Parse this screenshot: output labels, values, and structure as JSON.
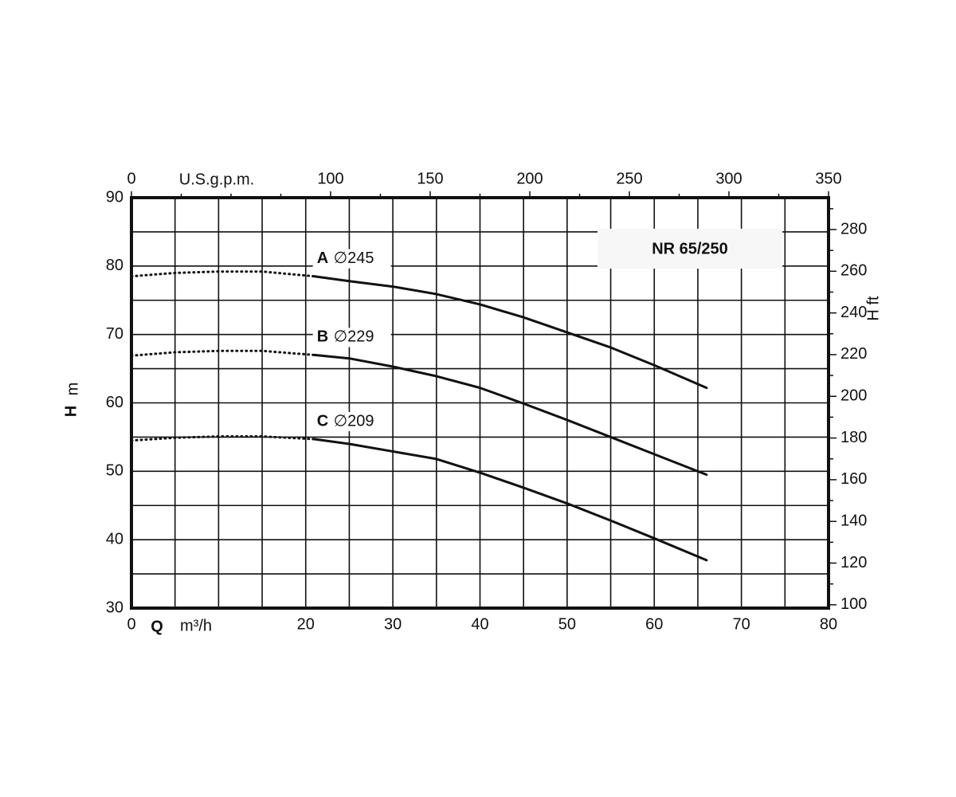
{
  "chart_data": {
    "type": "line",
    "title": "NR 65/250",
    "xlabel": "Q",
    "xunit": "m³/h",
    "x2label": "U.S.g.p.m.",
    "ylabel": "H",
    "yunit": "m",
    "y2label": "H ft",
    "xlim": [
      0,
      80
    ],
    "xticks": [
      0,
      20,
      30,
      40,
      50,
      60,
      70,
      80
    ],
    "xgrid": [
      0,
      5,
      10,
      15,
      20,
      25,
      30,
      35,
      40,
      45,
      50,
      55,
      60,
      65,
      70,
      75,
      80
    ],
    "ylim": [
      30,
      90
    ],
    "yticks": [
      30,
      40,
      50,
      60,
      70,
      80,
      90
    ],
    "ygrid": [
      30,
      35,
      40,
      45,
      50,
      55,
      60,
      65,
      70,
      75,
      80,
      85,
      90
    ],
    "x2lim": [
      0,
      350
    ],
    "x2ticks": [
      0,
      100,
      150,
      200,
      250,
      300,
      350
    ],
    "x2minorticks": [
      25,
      50,
      75,
      125,
      175,
      225,
      275,
      325
    ],
    "y2lim": [
      98.4,
      295.3
    ],
    "y2ticks": [
      100,
      120,
      140,
      160,
      180,
      200,
      220,
      240,
      260,
      280
    ],
    "y2minorticks": [
      110,
      130,
      150,
      170,
      190,
      210,
      230,
      250,
      270,
      290
    ],
    "grid": true,
    "color": "#111111",
    "series": [
      {
        "name": "A",
        "diameter": "∅245",
        "segments": [
          {
            "style": "dotted",
            "x": [
              0,
              5,
              10,
              15,
              21
            ],
            "values": [
              78.5,
              79.0,
              79.2,
              79.2,
              78.5
            ]
          },
          {
            "style": "solid",
            "x": [
              21,
              25,
              30,
              35,
              40,
              45,
              50,
              55,
              60,
              66
            ],
            "values": [
              78.5,
              77.8,
              77.0,
              75.9,
              74.4,
              72.5,
              70.3,
              68.1,
              65.5,
              62.2
            ]
          }
        ]
      },
      {
        "name": "B",
        "diameter": "∅229",
        "segments": [
          {
            "style": "dotted",
            "x": [
              0,
              5,
              10,
              15,
              21
            ],
            "values": [
              66.9,
              67.4,
              67.6,
              67.6,
              67.0
            ]
          },
          {
            "style": "solid",
            "x": [
              21,
              25,
              30,
              35,
              40,
              45,
              50,
              55,
              60,
              66
            ],
            "values": [
              67.0,
              66.5,
              65.3,
              63.9,
              62.2,
              59.9,
              57.5,
              55.0,
              52.5,
              49.5
            ]
          }
        ]
      },
      {
        "name": "C",
        "diameter": "∅209",
        "segments": [
          {
            "style": "dotted",
            "x": [
              0,
              5,
              10,
              15,
              21
            ],
            "values": [
              54.5,
              54.9,
              55.1,
              55.1,
              54.7
            ]
          },
          {
            "style": "solid",
            "x": [
              21,
              25,
              30,
              35,
              40,
              45,
              50,
              55,
              60,
              66
            ],
            "values": [
              54.7,
              54.0,
              52.9,
              51.8,
              49.8,
              47.6,
              45.3,
              42.8,
              40.2,
              37.0
            ]
          }
        ]
      }
    ]
  }
}
